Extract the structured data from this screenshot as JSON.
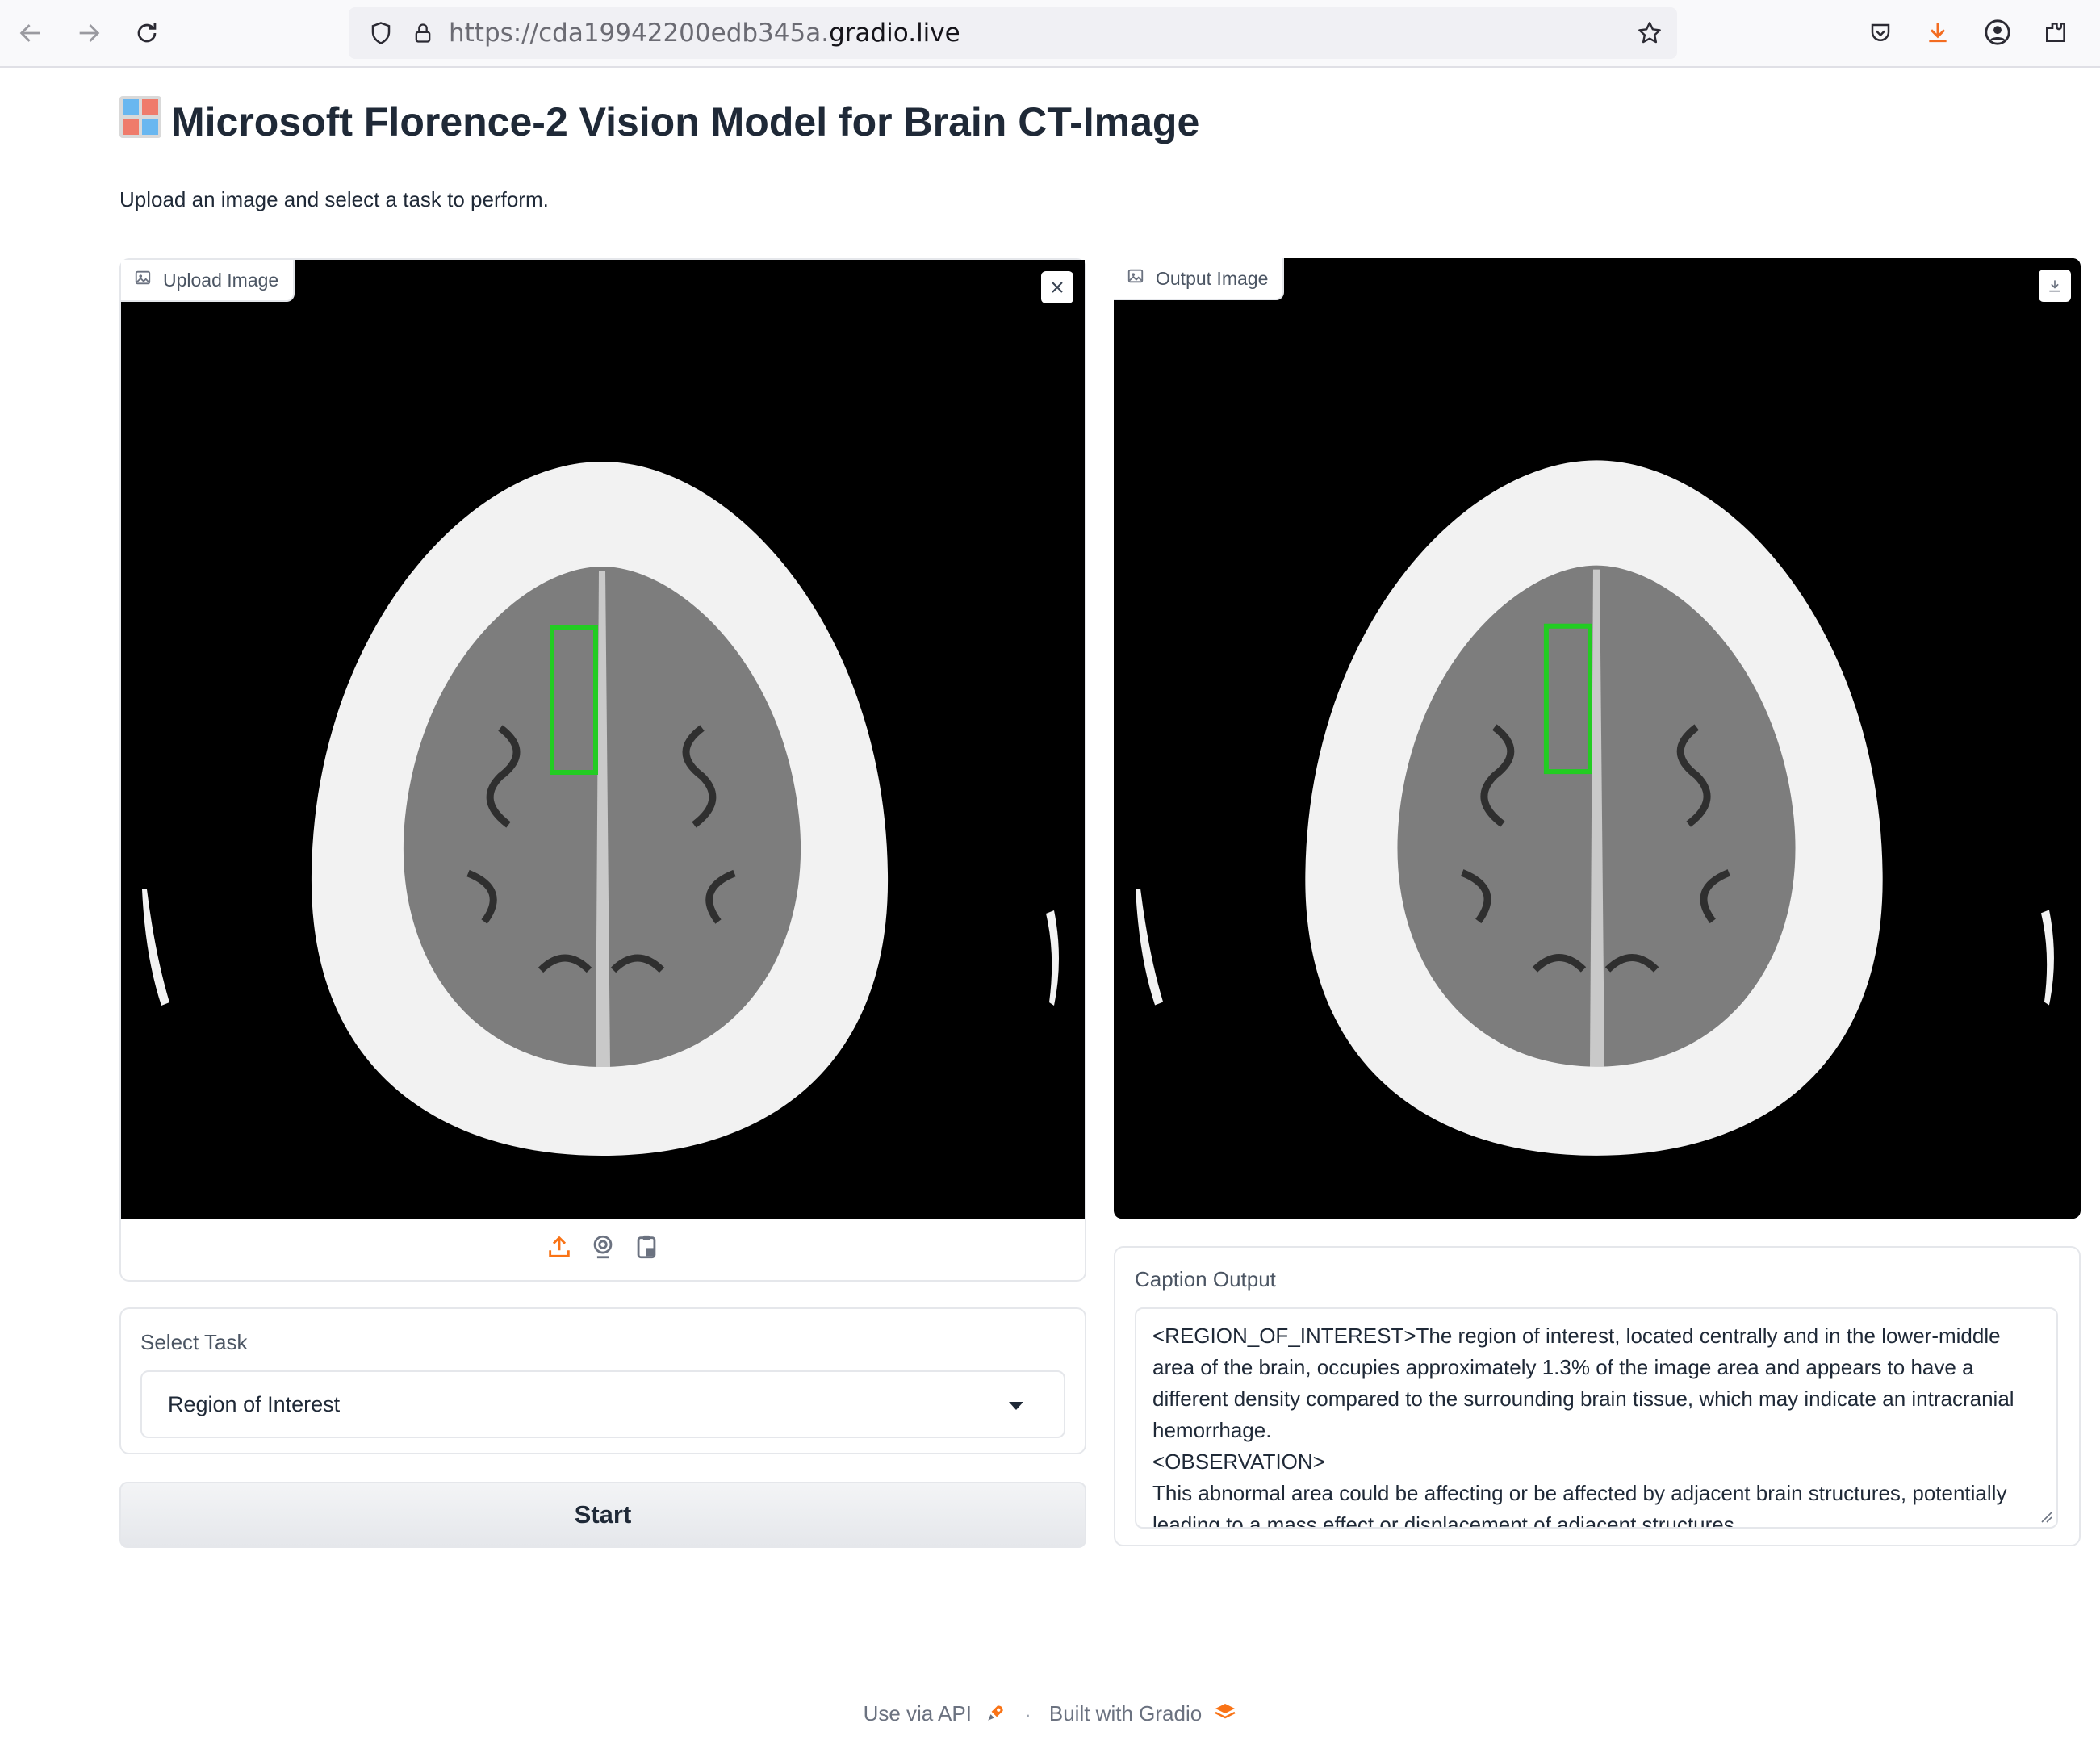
{
  "browser": {
    "url_prefix": "https://cda19942200edb345a.",
    "url_domain": "gradio.live",
    "icons": [
      "back-arrow-icon",
      "forward-arrow-icon",
      "reload-icon",
      "shield-icon",
      "lock-icon",
      "star-icon",
      "pocket-icon",
      "download-icon",
      "account-icon",
      "extensions-icon"
    ]
  },
  "page": {
    "title": "Microsoft Florence-2 Vision Model for Brain CT-Image",
    "title_emoji": "window-emoji",
    "subtitle": "Upload an image and select a task to perform."
  },
  "upload": {
    "label": "Upload Image",
    "image_desc": "brain-ct-slice-with-green-roi-box",
    "source_icons": [
      "upload-icon",
      "webcam-icon",
      "clipboard-icon"
    ]
  },
  "output": {
    "label": "Output Image"
  },
  "task": {
    "label": "Select Task",
    "selected": "Region of Interest"
  },
  "start": {
    "label": "Start"
  },
  "caption": {
    "label": "Caption Output",
    "value": "<REGION_OF_INTEREST>The region of interest, located centrally and in the lower-middle area of the brain, occupies approximately 1.3% of the image area and appears to have a different density compared to the surrounding brain tissue, which may indicate an intracranial hemorrhage.\n<OBSERVATION>\nThis abnormal area could be affecting or be affected by adjacent brain structures, potentially leading to a mass effect or displacement of adjacent structures."
  },
  "footer": {
    "api_label": "Use via API",
    "separator": "·",
    "built_label": "Built with Gradio"
  },
  "colors": {
    "accent_orange": "#f97316",
    "roi_green": "#22cc22",
    "image_bg": "#000000"
  }
}
